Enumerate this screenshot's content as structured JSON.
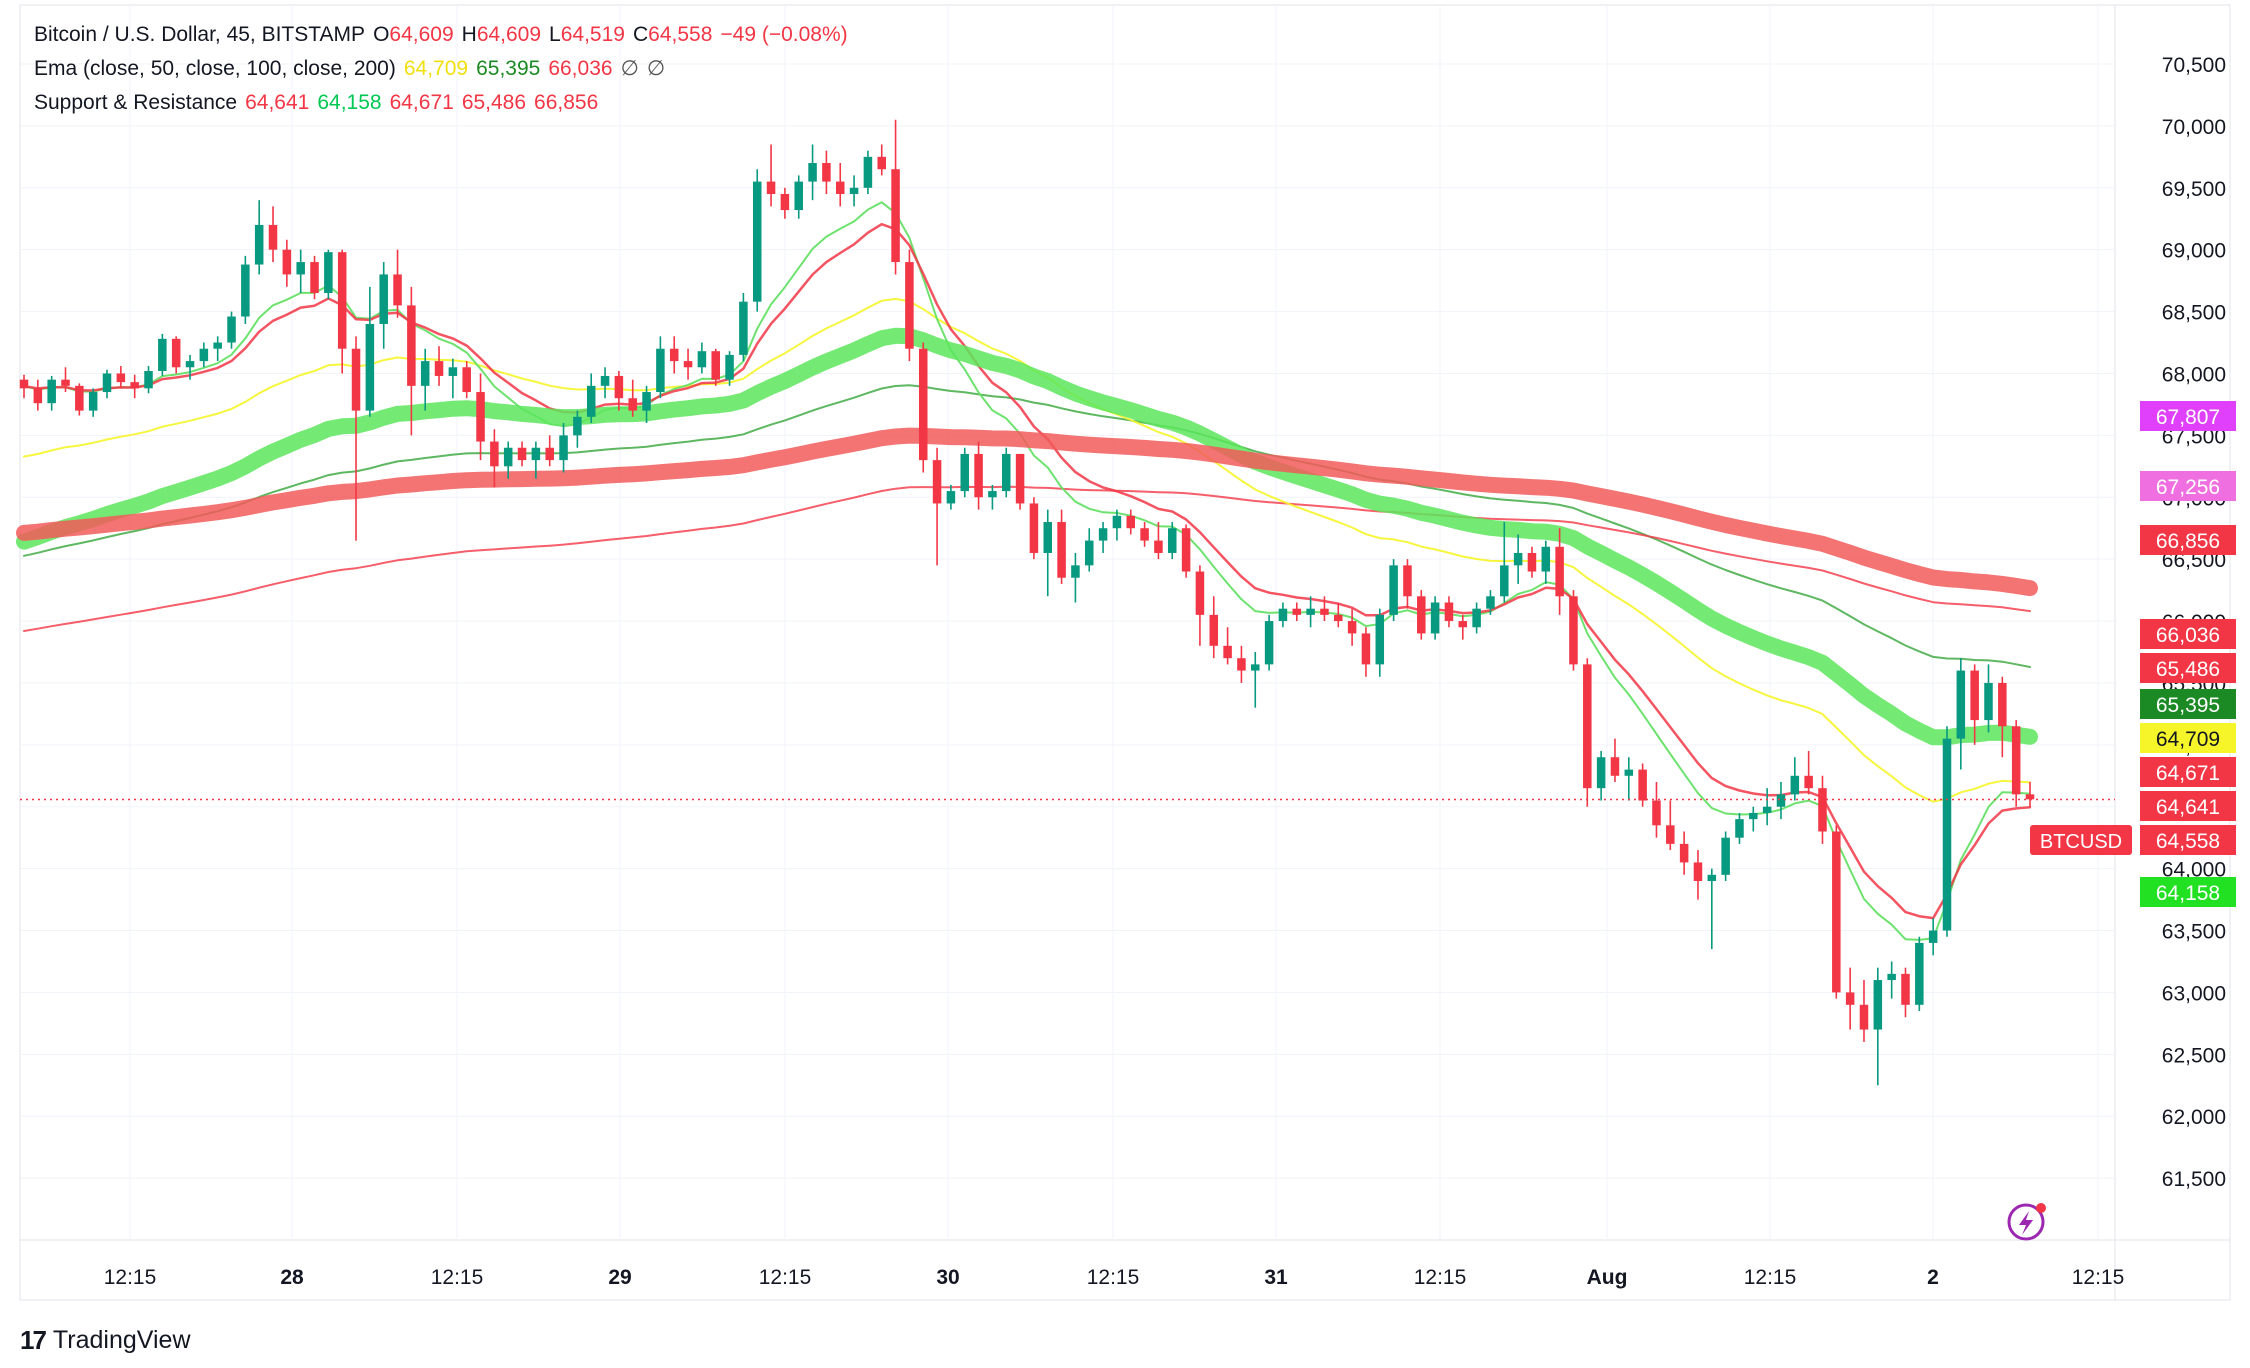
{
  "header": {
    "symbol": "Bitcoin / U.S. Dollar, 45, BITSTAMP",
    "open_label": "O",
    "open": "64,609",
    "high_label": "H",
    "high": "64,609",
    "low_label": "L",
    "low": "64,519",
    "close_label": "C",
    "close": "64,558",
    "change": "−49 (−0.08%)"
  },
  "ema_legend": {
    "label": "Ema (close, 50, close, 100, close, 200)",
    "v1": "64,709",
    "v2": "65,395",
    "v3": "66,036",
    "v4": "∅",
    "v5": "∅"
  },
  "sr_legend": {
    "label": "Support & Resistance",
    "v1": "64,641",
    "v2": "64,158",
    "v3": "64,671",
    "v4": "65,486",
    "v5": "66,856"
  },
  "footer": {
    "brand": "TradingView",
    "logo": "17"
  },
  "chart_data": {
    "type": "candlestick",
    "price_axis_ticks": [
      "70,500",
      "70,000",
      "69,500",
      "69,000",
      "68,500",
      "68,000",
      "67,500",
      "67,000",
      "66,500",
      "66,000",
      "65,500",
      "65,000",
      "64,500",
      "64,000",
      "63,500",
      "63,000",
      "62,500",
      "62,000",
      "61,500"
    ],
    "time_axis_ticks": [
      "12:15",
      "28",
      "12:15",
      "29",
      "12:15",
      "30",
      "12:15",
      "31",
      "12:15",
      "Aug",
      "12:15",
      "2",
      "12:15"
    ],
    "ylim": [
      61500,
      70500
    ],
    "price_labels": [
      {
        "text": "67,807",
        "color": "#e040fb"
      },
      {
        "text": "67,256",
        "color": "#f06fe0"
      },
      {
        "text": "66,856",
        "color": "#f23645"
      },
      {
        "text": "66,036",
        "color": "#f23645"
      },
      {
        "text": "65,486",
        "color": "#f23645"
      },
      {
        "text": "65,395",
        "color": "#1b8a24"
      },
      {
        "text": "64,709",
        "color": "#f5f52a"
      },
      {
        "text": "64,671",
        "color": "#f23645"
      },
      {
        "text": "64,641",
        "color": "#f23645"
      },
      {
        "text": "64,558",
        "color": "#f23645",
        "tag": "BTCUSD"
      },
      {
        "text": "64,158",
        "color": "#22e022"
      }
    ],
    "last_price": 64558,
    "candles": [
      [
        67950,
        67990,
        67800,
        67880
      ],
      [
        67880,
        67950,
        67700,
        67760
      ],
      [
        67760,
        67980,
        67700,
        67950
      ],
      [
        67950,
        68050,
        67850,
        67900
      ],
      [
        67900,
        67920,
        67660,
        67700
      ],
      [
        67700,
        67880,
        67650,
        67850
      ],
      [
        67850,
        68030,
        67800,
        68000
      ],
      [
        68000,
        68060,
        67880,
        67930
      ],
      [
        67930,
        67990,
        67800,
        67880
      ],
      [
        67880,
        68060,
        67840,
        68020
      ],
      [
        68020,
        68320,
        67980,
        68280
      ],
      [
        68280,
        68300,
        68000,
        68050
      ],
      [
        68050,
        68150,
        67950,
        68100
      ],
      [
        68100,
        68250,
        68050,
        68200
      ],
      [
        68200,
        68300,
        68100,
        68250
      ],
      [
        68250,
        68500,
        68200,
        68460
      ],
      [
        68460,
        68950,
        68400,
        68880
      ],
      [
        68880,
        69400,
        68800,
        69200
      ],
      [
        69200,
        69350,
        68900,
        69000
      ],
      [
        69000,
        69080,
        68700,
        68800
      ],
      [
        68800,
        69000,
        68650,
        68900
      ],
      [
        68900,
        68950,
        68600,
        68650
      ],
      [
        68650,
        69000,
        68600,
        68980
      ],
      [
        68980,
        69000,
        68000,
        68200
      ],
      [
        68200,
        68300,
        66650,
        67700
      ],
      [
        67700,
        68700,
        67650,
        68400
      ],
      [
        68400,
        68900,
        68200,
        68800
      ],
      [
        68800,
        69000,
        68450,
        68550
      ],
      [
        68550,
        68700,
        67500,
        67900
      ],
      [
        67900,
        68200,
        67700,
        68100
      ],
      [
        68100,
        68220,
        67900,
        67980
      ],
      [
        67980,
        68120,
        67800,
        68050
      ],
      [
        68050,
        68100,
        67800,
        67850
      ],
      [
        67850,
        68000,
        67300,
        67450
      ],
      [
        67450,
        67550,
        67080,
        67250
      ],
      [
        67250,
        67450,
        67150,
        67400
      ],
      [
        67400,
        67450,
        67250,
        67300
      ],
      [
        67300,
        67450,
        67150,
        67400
      ],
      [
        67400,
        67500,
        67250,
        67300
      ],
      [
        67300,
        67600,
        67200,
        67500
      ],
      [
        67500,
        67700,
        67400,
        67650
      ],
      [
        67650,
        68000,
        67600,
        67900
      ],
      [
        67900,
        68050,
        67800,
        67980
      ],
      [
        67980,
        68020,
        67700,
        67800
      ],
      [
        67800,
        67950,
        67650,
        67700
      ],
      [
        67700,
        67900,
        67600,
        67850
      ],
      [
        67850,
        68300,
        67800,
        68200
      ],
      [
        68200,
        68300,
        68000,
        68100
      ],
      [
        68100,
        68200,
        67950,
        68050
      ],
      [
        68050,
        68250,
        68000,
        68180
      ],
      [
        68180,
        68200,
        67900,
        67950
      ],
      [
        67950,
        68180,
        67900,
        68150
      ],
      [
        68150,
        68650,
        68100,
        68580
      ],
      [
        68580,
        69650,
        68500,
        69550
      ],
      [
        69550,
        69850,
        69350,
        69450
      ],
      [
        69450,
        69500,
        69250,
        69320
      ],
      [
        69320,
        69600,
        69250,
        69550
      ],
      [
        69550,
        69850,
        69400,
        69700
      ],
      [
        69700,
        69800,
        69450,
        69550
      ],
      [
        69550,
        69700,
        69350,
        69450
      ],
      [
        69450,
        69600,
        69350,
        69500
      ],
      [
        69500,
        69800,
        69450,
        69750
      ],
      [
        69750,
        69850,
        69600,
        69650
      ],
      [
        69650,
        70050,
        68800,
        68900
      ],
      [
        68900,
        69000,
        68100,
        68200
      ],
      [
        68200,
        68250,
        67200,
        67300
      ],
      [
        67300,
        67400,
        66450,
        66950
      ],
      [
        66950,
        67100,
        66900,
        67050
      ],
      [
        67050,
        67400,
        67000,
        67350
      ],
      [
        67350,
        67450,
        66900,
        67000
      ],
      [
        67000,
        67100,
        66900,
        67050
      ],
      [
        67050,
        67400,
        67000,
        67350
      ],
      [
        67350,
        67350,
        66900,
        66950
      ],
      [
        66950,
        67000,
        66500,
        66550
      ],
      [
        66550,
        66900,
        66200,
        66800
      ],
      [
        66800,
        66900,
        66300,
        66350
      ],
      [
        66350,
        66550,
        66150,
        66450
      ],
      [
        66450,
        66750,
        66400,
        66650
      ],
      [
        66650,
        66800,
        66550,
        66750
      ],
      [
        66750,
        66900,
        66650,
        66850
      ],
      [
        66850,
        66900,
        66700,
        66750
      ],
      [
        66750,
        66800,
        66600,
        66650
      ],
      [
        66650,
        66800,
        66500,
        66550
      ],
      [
        66550,
        66800,
        66500,
        66750
      ],
      [
        66750,
        66780,
        66350,
        66400
      ],
      [
        66400,
        66450,
        65800,
        66050
      ],
      [
        66050,
        66200,
        65700,
        65800
      ],
      [
        65800,
        65950,
        65650,
        65700
      ],
      [
        65700,
        65800,
        65500,
        65600
      ],
      [
        65600,
        65750,
        65300,
        65650
      ],
      [
        65650,
        66050,
        65600,
        66000
      ],
      [
        66000,
        66150,
        65950,
        66100
      ],
      [
        66100,
        66150,
        66000,
        66050
      ],
      [
        66050,
        66200,
        65950,
        66100
      ],
      [
        66100,
        66200,
        66000,
        66050
      ],
      [
        66050,
        66150,
        65950,
        66000
      ],
      [
        66000,
        66100,
        65800,
        65900
      ],
      [
        65900,
        65950,
        65550,
        65650
      ],
      [
        65650,
        66100,
        65550,
        66050
      ],
      [
        66050,
        66500,
        66000,
        66450
      ],
      [
        66450,
        66500,
        66100,
        66200
      ],
      [
        66200,
        66250,
        65850,
        65900
      ],
      [
        65900,
        66200,
        65850,
        66150
      ],
      [
        66150,
        66200,
        65950,
        66000
      ],
      [
        66000,
        66050,
        65850,
        65950
      ],
      [
        65950,
        66150,
        65900,
        66100
      ],
      [
        66100,
        66250,
        66050,
        66200
      ],
      [
        66200,
        66800,
        66150,
        66450
      ],
      [
        66450,
        66700,
        66300,
        66550
      ],
      [
        66550,
        66600,
        66350,
        66400
      ],
      [
        66400,
        66650,
        66300,
        66600
      ],
      [
        66600,
        66750,
        66050,
        66200
      ],
      [
        66200,
        66250,
        65600,
        65650
      ],
      [
        65650,
        65700,
        64500,
        64650
      ],
      [
        64650,
        64950,
        64550,
        64900
      ],
      [
        64900,
        65050,
        64700,
        64750
      ],
      [
        64750,
        64900,
        64550,
        64800
      ],
      [
        64800,
        64850,
        64500,
        64550
      ],
      [
        64550,
        64700,
        64250,
        64350
      ],
      [
        64350,
        64550,
        64150,
        64200
      ],
      [
        64200,
        64300,
        63950,
        64050
      ],
      [
        64050,
        64150,
        63750,
        63900
      ],
      [
        63900,
        64000,
        63350,
        63950
      ],
      [
        63950,
        64300,
        63900,
        64250
      ],
      [
        64250,
        64450,
        64200,
        64400
      ],
      [
        64400,
        64500,
        64300,
        64450
      ],
      [
        64450,
        64650,
        64350,
        64500
      ],
      [
        64500,
        64700,
        64400,
        64600
      ],
      [
        64600,
        64900,
        64550,
        64750
      ],
      [
        64750,
        64950,
        64600,
        64650
      ],
      [
        64650,
        64750,
        64200,
        64300
      ],
      [
        64300,
        64350,
        62950,
        63000
      ],
      [
        63000,
        63200,
        62700,
        62900
      ],
      [
        62900,
        63100,
        62600,
        62700
      ],
      [
        62700,
        63200,
        62250,
        63100
      ],
      [
        63100,
        63250,
        62950,
        63150
      ],
      [
        63150,
        63200,
        62800,
        62900
      ],
      [
        62900,
        63450,
        62850,
        63400
      ],
      [
        63400,
        63600,
        63300,
        63500
      ],
      [
        63500,
        65150,
        63450,
        65050
      ],
      [
        65050,
        65700,
        64800,
        65600
      ],
      [
        65600,
        65650,
        65000,
        65200
      ],
      [
        65200,
        65650,
        65100,
        65500
      ],
      [
        65500,
        65550,
        64900,
        65150
      ],
      [
        65150,
        65200,
        64500,
        64600
      ],
      [
        64600,
        64700,
        64500,
        64560
      ]
    ]
  }
}
